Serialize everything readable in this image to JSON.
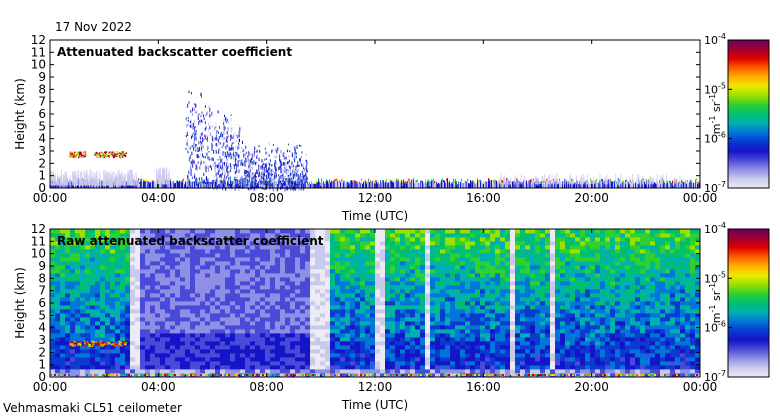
{
  "date": "17 Nov 2022",
  "footer": "Vehmasmaki CL51 ceilometer",
  "colorbar": {
    "ticks": [
      "10-7",
      "10-6",
      "10-5",
      "10-4"
    ],
    "ticks_display": [
      [
        "10",
        "-7"
      ],
      [
        "10",
        "-6"
      ],
      [
        "10",
        "-5"
      ],
      [
        "10",
        "-4"
      ]
    ],
    "unit_parts": [
      "m",
      "-1",
      " sr",
      "-1"
    ],
    "colors": [
      "#ecebf4",
      "#c9c9ee",
      "#8f8fe6",
      "#4a4ad8",
      "#1414c8",
      "#0a3ad0",
      "#0077d8",
      "#00b0b0",
      "#00c070",
      "#30d030",
      "#9ae000",
      "#f0e800",
      "#ffb000",
      "#ff5a00",
      "#e00000",
      "#a00030",
      "#6a0060"
    ]
  },
  "chart_data": [
    {
      "type": "heatmap",
      "title": "Attenuated backscatter coefficient",
      "xlabel": "Time (UTC)",
      "ylabel": "Height (km)",
      "xlim": [
        "00:00",
        "00:00"
      ],
      "ylim": [
        0,
        12
      ],
      "x_ticks": [
        "00:00",
        "04:00",
        "08:00",
        "12:00",
        "16:00",
        "20:00",
        "00:00"
      ],
      "y_ticks": [
        "0",
        "1",
        "2",
        "3",
        "4",
        "5",
        "6",
        "7",
        "8",
        "9",
        "10",
        "11",
        "12"
      ],
      "colorbar_label": "m-1 sr-1",
      "colorbar_range": [
        "10-7",
        "10-4"
      ],
      "colorscale": "log",
      "features": [
        {
          "label": "surface layer",
          "x_range": [
            "00:00",
            "24:00"
          ],
          "height_km": [
            0,
            0.4
          ],
          "value": "10-6 to 10-4"
        },
        {
          "label": "cloud layer",
          "x_range": [
            "00:40",
            "02:50"
          ],
          "height_km": [
            2.5,
            3.0
          ],
          "value": "10-5 to 10-4"
        },
        {
          "label": "precipitation",
          "x_range": [
            "05:00",
            "09:30"
          ],
          "height_km": [
            0,
            8
          ],
          "value": "10-7 to 10-6"
        }
      ]
    },
    {
      "type": "heatmap",
      "title": "Raw attenuated backscatter coefficient",
      "xlabel": "Time (UTC)",
      "ylabel": "Height (km)",
      "xlim": [
        "00:00",
        "00:00"
      ],
      "ylim": [
        0,
        12
      ],
      "x_ticks": [
        "00:00",
        "04:00",
        "08:00",
        "12:00",
        "16:00",
        "20:00",
        "00:00"
      ],
      "y_ticks": [
        "0",
        "1",
        "2",
        "3",
        "4",
        "5",
        "6",
        "7",
        "8",
        "9",
        "10",
        "11",
        "12"
      ],
      "colorbar_label": "m-1 sr-1",
      "colorbar_range": [
        "10-7",
        "10-4"
      ],
      "colorscale": "log",
      "features": [
        {
          "label": "noise",
          "x_range": [
            "00:00",
            "24:00"
          ],
          "height_km": [
            1,
            12
          ],
          "value": "10-6 to 10-5"
        },
        {
          "label": "surface layer",
          "x_range": [
            "00:00",
            "24:00"
          ],
          "height_km": [
            0,
            0.4
          ],
          "value": "10-6 to 10-4"
        },
        {
          "label": "cloud layer",
          "x_range": [
            "00:40",
            "02:50"
          ],
          "height_km": [
            2.5,
            3.0
          ],
          "value": "10-5 to 10-4"
        }
      ]
    }
  ]
}
